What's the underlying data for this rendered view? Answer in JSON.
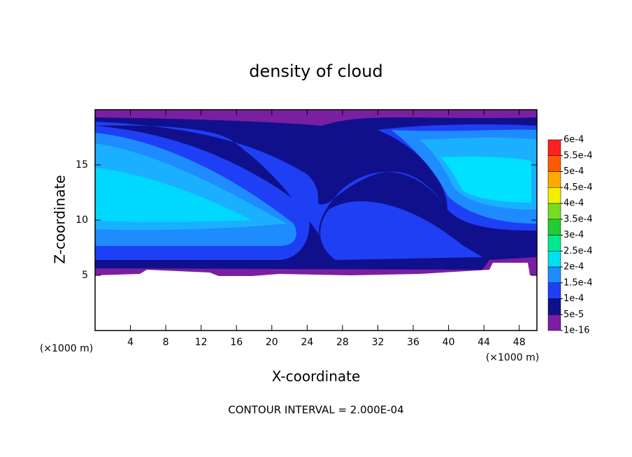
{
  "chart_data": {
    "type": "contour",
    "title": "density of cloud",
    "x_label": "X-coordinate",
    "y_label": "Z-coordinate",
    "x_unit": "(×1000 m)",
    "x_unit_right": "(×1000 m)",
    "footer": "CONTOUR INTERVAL = 2.000E-04",
    "xlim": [
      0,
      50
    ],
    "xticks": [
      4,
      8,
      12,
      16,
      20,
      24,
      28,
      32,
      36,
      40,
      44,
      48
    ],
    "ylim": [
      0,
      20
    ],
    "yticks": [
      5,
      10,
      15
    ],
    "colorbar": {
      "lim": [
        0,
        0.0006
      ],
      "levels": [
        {
          "value": 1e-16,
          "label": "1e-16"
        },
        {
          "value": 5e-05,
          "label": "5e-5"
        },
        {
          "value": 0.0001,
          "label": "1e-4"
        },
        {
          "value": 0.00015,
          "label": "1.5e-4"
        },
        {
          "value": 0.0002,
          "label": "2e-4"
        },
        {
          "value": 0.00025,
          "label": "2.5e-4"
        },
        {
          "value": 0.0003,
          "label": "3e-4"
        },
        {
          "value": 0.00035,
          "label": "3.5e-4"
        },
        {
          "value": 0.0004,
          "label": "4e-4"
        },
        {
          "value": 0.00045,
          "label": "4.5e-4"
        },
        {
          "value": 0.0005,
          "label": "5e-4"
        },
        {
          "value": 0.00055,
          "label": "5.5e-4"
        },
        {
          "value": 0.0006,
          "label": "6e-4"
        }
      ],
      "colors": [
        "#7a1fa2",
        "#10108c",
        "#1f3ff5",
        "#1e8cff",
        "#00e0f0",
        "#00e890",
        "#22cc33",
        "#77dd22",
        "#f0f000",
        "#ffaa00",
        "#ff5a00",
        "#ff2020"
      ]
    }
  }
}
